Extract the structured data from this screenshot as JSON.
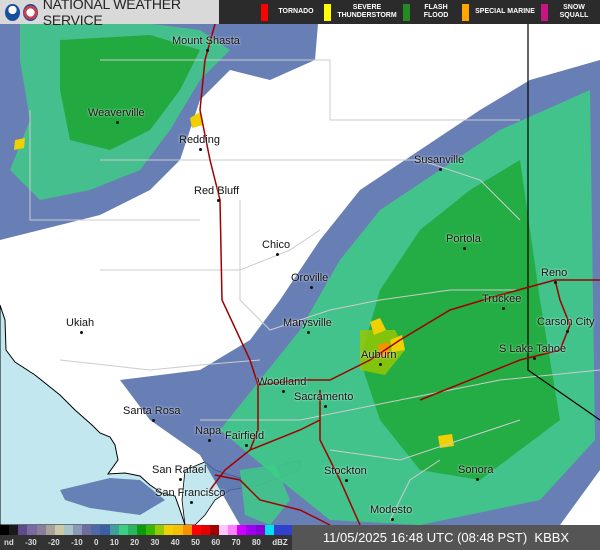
{
  "header": {
    "title": "NATIONAL WEATHER SERVICE",
    "logos": [
      "noaa-logo",
      "nws-logo"
    ]
  },
  "warnings": [
    {
      "label": "TORNADO",
      "color": "#ff0000"
    },
    {
      "label": "SEVERE THUNDERSTORM",
      "color": "#ffff00"
    },
    {
      "label": "FLASH FLOOD",
      "color": "#228b22"
    },
    {
      "label": "SPECIAL MARINE",
      "color": "#ffa500"
    },
    {
      "label": "SNOW SQUALL",
      "color": "#c71585"
    }
  ],
  "map": {
    "colors": {
      "ocean": "#c2e7ee",
      "land": "#ffffff",
      "highway": "#a00000",
      "county": "#cccccc",
      "state_line": "#000000"
    },
    "cities": [
      "Mount Shasta",
      "Weaverville",
      "Redding",
      "Red Bluff",
      "Susanville",
      "Chico",
      "Portola",
      "Reno",
      "Oroville",
      "Truckee",
      "Carson City",
      "Ukiah",
      "Marysville",
      "Auburn",
      "S Lake Tahoe",
      "Woodland",
      "Sacramento",
      "Santa Rosa",
      "Napa",
      "Fairfield",
      "San Rafael",
      "Stockton",
      "Sonora",
      "San Francisco",
      "Modesto"
    ]
  },
  "legend": {
    "labels": [
      "nd",
      "-30",
      "-20",
      "-10",
      "0",
      "10",
      "20",
      "30",
      "40",
      "50",
      "60",
      "70",
      "80",
      "dBZ"
    ],
    "colors": [
      "#000000",
      "#1a1a1a",
      "#5c4a8c",
      "#7a6aa0",
      "#8a7e9c",
      "#a7a39a",
      "#c9c9a8",
      "#a8c4c4",
      "#8c98b8",
      "#6e6e9e",
      "#4e68a8",
      "#3c5ea6",
      "#3fa09a",
      "#3ccf84",
      "#2ab560",
      "#0b9b0b",
      "#39b800",
      "#98c800",
      "#f0d000",
      "#f8c000",
      "#fa9000",
      "#ff0000",
      "#e00000",
      "#a00000",
      "#ffc8ff",
      "#ff80ff",
      "#d000ff",
      "#a000f0",
      "#8800d8",
      "#00e0f0",
      "#3040d0",
      "#3040d0"
    ]
  },
  "timestamp": "11/05/2025 16:48 UTC (08:48 PST)",
  "station": "KBBX"
}
